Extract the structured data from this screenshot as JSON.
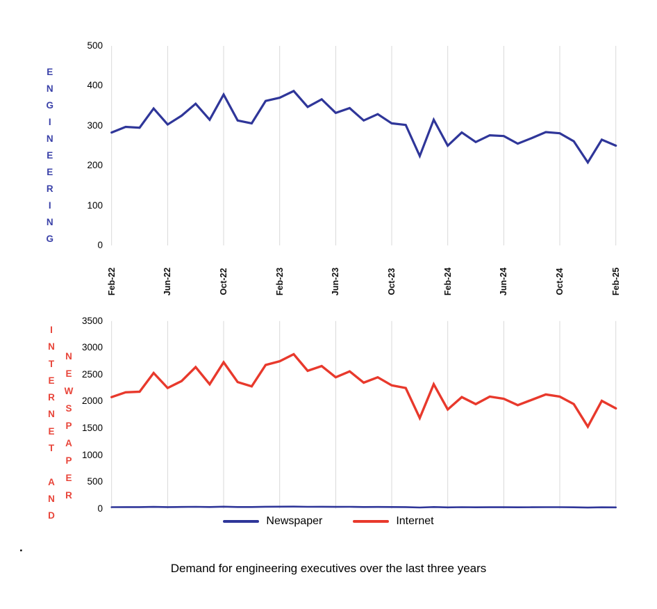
{
  "page": {
    "caption": "Demand for engineering executives over the last three years",
    "stray_dot": "."
  },
  "colors": {
    "newspaper_blue": "#2F3699",
    "internet_red": "#E8392C",
    "label_blue": "#3A41A8",
    "label_red": "#E8453A",
    "grid": "#D9D9D9",
    "text": "#000000",
    "background": "#FFFFFF"
  },
  "legend": {
    "items": [
      {
        "label": "Newspaper",
        "color": "#2F3699"
      },
      {
        "label": "Internet",
        "color": "#E8392C"
      }
    ]
  },
  "chart_data": [
    {
      "type": "line",
      "title": "",
      "y_axis_word": "ENGINEERING",
      "categories": [
        "Feb-22",
        "Mar-22",
        "Apr-22",
        "May-22",
        "Jun-22",
        "Jul-22",
        "Aug-22",
        "Sep-22",
        "Oct-22",
        "Nov-22",
        "Dec-22",
        "Jan-23",
        "Feb-23",
        "Mar-23",
        "Apr-23",
        "May-23",
        "Jun-23",
        "Jul-23",
        "Aug-23",
        "Sep-23",
        "Oct-23",
        "Nov-23",
        "Dec-23",
        "Jan-24",
        "Feb-24",
        "Mar-24",
        "Apr-24",
        "May-24",
        "Jun-24",
        "Jul-24",
        "Aug-24",
        "Sep-24",
        "Oct-24",
        "Nov-24",
        "Dec-24",
        "Jan-25",
        "Feb-25"
      ],
      "x_tick_labels": [
        "Feb-22",
        "Jun-22",
        "Oct-22",
        "Feb-23",
        "Jun-23",
        "Oct-23",
        "Feb-24",
        "Jun-24",
        "Oct-24",
        "Feb-25"
      ],
      "gridline_every": 4,
      "grid": "vertical-only",
      "legend_position": "none",
      "ylim": [
        0,
        500
      ],
      "yticks": [
        0,
        100,
        200,
        300,
        400,
        500
      ],
      "series": [
        {
          "name": "Newspaper",
          "color": "#2F3699",
          "values": [
            283,
            297,
            295,
            343,
            303,
            325,
            355,
            315,
            378,
            313,
            306,
            362,
            370,
            387,
            347,
            366,
            332,
            344,
            313,
            329,
            306,
            302,
            224,
            315,
            250,
            283,
            259,
            276,
            274,
            255,
            269,
            284,
            281,
            261,
            208,
            265,
            250
          ]
        }
      ]
    },
    {
      "type": "line",
      "title": "",
      "y_axis_words": [
        "INTERNET AND",
        "NEWSPAPER"
      ],
      "categories": [
        "Feb-22",
        "Mar-22",
        "Apr-22",
        "May-22",
        "Jun-22",
        "Jul-22",
        "Aug-22",
        "Sep-22",
        "Oct-22",
        "Nov-22",
        "Dec-22",
        "Jan-23",
        "Feb-23",
        "Mar-23",
        "Apr-23",
        "May-23",
        "Jun-23",
        "Jul-23",
        "Aug-23",
        "Sep-23",
        "Oct-23",
        "Nov-23",
        "Dec-23",
        "Jan-24",
        "Feb-24",
        "Mar-24",
        "Apr-24",
        "May-24",
        "Jun-24",
        "Jul-24",
        "Aug-24",
        "Sep-24",
        "Oct-24",
        "Nov-24",
        "Dec-24",
        "Jan-25",
        "Feb-25"
      ],
      "x_tick_labels": [
        "Feb-22",
        "Jun-22",
        "Oct-22",
        "Feb-23",
        "Jun-23",
        "Oct-23",
        "Feb-24",
        "Jun-24",
        "Oct-24",
        "Feb-25"
      ],
      "gridline_every": 4,
      "grid": "vertical-only",
      "legend_position": "bottom",
      "ylim": [
        0,
        3500
      ],
      "yticks": [
        0,
        500,
        1000,
        1500,
        2000,
        2500,
        3000,
        3500
      ],
      "series": [
        {
          "name": "Internet",
          "color": "#E8392C",
          "values": [
            2080,
            2170,
            2180,
            2530,
            2250,
            2380,
            2640,
            2320,
            2730,
            2360,
            2280,
            2680,
            2750,
            2880,
            2570,
            2660,
            2450,
            2560,
            2350,
            2450,
            2300,
            2250,
            1690,
            2320,
            1850,
            2080,
            1950,
            2090,
            2050,
            1930,
            2030,
            2130,
            2090,
            1950,
            1530,
            2010,
            1870
          ]
        },
        {
          "name": "Newspaper",
          "color": "#2F3699",
          "rendering": "flat-near-zero",
          "display_scale": 0.1,
          "values": [
            283,
            297,
            295,
            343,
            303,
            325,
            355,
            315,
            378,
            313,
            306,
            362,
            370,
            387,
            347,
            366,
            332,
            344,
            313,
            329,
            306,
            302,
            224,
            315,
            250,
            283,
            259,
            276,
            274,
            255,
            269,
            284,
            281,
            261,
            208,
            265,
            250
          ]
        }
      ]
    }
  ]
}
